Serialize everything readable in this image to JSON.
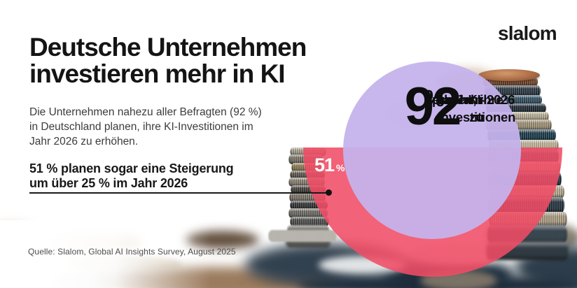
{
  "brand": {
    "logo_text": "slalom"
  },
  "header": {
    "title_line1": "Deutsche Unternehmen",
    "title_line2": "investieren mehr in KI"
  },
  "intro": {
    "lines": [
      "Die Unternehmen nahezu aller Befragten (92 %)",
      "in Deutschland planen, ihre KI-Investitionen im",
      "Jahr 2026 zu erhöhen."
    ]
  },
  "claim": {
    "lines": [
      "51 % planen sogar eine Steigerung",
      "um über 25 % im Jahr 2026"
    ]
  },
  "source": {
    "text": "Quelle: Slalom, Global AI Insights Survey, August 2025"
  },
  "stats": {
    "primary": {
      "value": "92",
      "unit": "%",
      "desc_lines": [
        "planen, ihre",
        "KI-Investitionen",
        "im Jahr 2026 zu",
        "erhöhen"
      ]
    },
    "secondary": {
      "value": "51",
      "unit": "%"
    }
  },
  "colors": {
    "pink": "#F04C65",
    "purple": "#C5B2EC",
    "title_black": "#141414",
    "body_gray": "#3C3C3C",
    "source_gray": "#4D4D4D",
    "white": "#FFFFFF"
  },
  "chart_data": {
    "type": "table",
    "title": "Deutsche Unternehmen investieren mehr in KI",
    "categories": [
      "planen, ihre KI-Investitionen im Jahr 2026 zu erhöhen",
      "planen sogar eine Steigerung um über 25 % im Jahr 2026"
    ],
    "values": [
      92,
      51
    ],
    "unit": "%",
    "source": "Quelle: Slalom, Global AI Insights Survey, August 2025"
  }
}
